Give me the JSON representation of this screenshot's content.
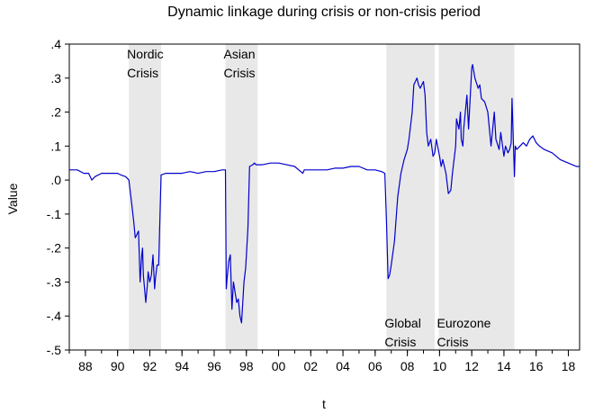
{
  "chart_data": {
    "type": "line",
    "title": "Dynamic linkage during crisis or non-crisis period",
    "xlabel": "t",
    "ylabel": "Value",
    "xlim": [
      1987.0,
      2018.7
    ],
    "ylim": [
      -0.5,
      0.4
    ],
    "yticks": [
      ".4",
      ".3",
      ".2",
      ".1",
      ".0",
      "-.1",
      "-.2",
      "-.3",
      "-.4",
      "-.5"
    ],
    "ytick_values": [
      0.4,
      0.3,
      0.2,
      0.1,
      0.0,
      -0.1,
      -0.2,
      -0.3,
      -0.4,
      -0.5
    ],
    "xticks": [
      "88",
      "90",
      "92",
      "94",
      "96",
      "98",
      "00",
      "02",
      "04",
      "06",
      "08",
      "10",
      "12",
      "14",
      "16",
      "18"
    ],
    "xtick_values": [
      1988,
      1990,
      1992,
      1994,
      1996,
      1998,
      2000,
      2002,
      2004,
      2006,
      2008,
      2010,
      2012,
      2014,
      2016,
      2018
    ],
    "grid": false,
    "line_color": "#0000cc",
    "shade_color": "#e8e8e8",
    "crisis_periods": [
      {
        "name": "Nordic Crisis",
        "line1": "Nordic",
        "line2": "Crisis",
        "start": 1990.7,
        "end": 1992.7,
        "label_position": "top"
      },
      {
        "name": "Asian Crisis",
        "line1": "Asian",
        "line2": "Crisis",
        "start": 1996.7,
        "end": 1998.7,
        "label_position": "top"
      },
      {
        "name": "Global Crisis",
        "line1": "Global",
        "line2": "Crisis",
        "start": 2006.7,
        "end": 2009.7,
        "label_position": "bottom"
      },
      {
        "name": "Eurozone Crisis",
        "line1": "Eurozone",
        "line2": "Crisis",
        "start": 2009.95,
        "end": 2014.65,
        "label_position": "bottom"
      }
    ],
    "series": [
      {
        "name": "Dynamic linkage",
        "x": [
          1987.0,
          1987.5,
          1987.9,
          1988.2,
          1988.4,
          1988.6,
          1989.0,
          1989.5,
          1990.0,
          1990.2,
          1990.5,
          1990.7,
          1990.9,
          1991.0,
          1991.1,
          1991.2,
          1991.3,
          1991.4,
          1991.5,
          1991.55,
          1991.6,
          1991.75,
          1991.85,
          1991.9,
          1992.0,
          1992.1,
          1992.2,
          1992.3,
          1992.35,
          1992.45,
          1992.55,
          1992.7,
          1993.0,
          1993.5,
          1994.0,
          1994.5,
          1995.0,
          1995.5,
          1996.0,
          1996.5,
          1996.7,
          1996.75,
          1996.8,
          1996.9,
          1997.0,
          1997.1,
          1997.2,
          1997.3,
          1997.4,
          1997.5,
          1997.6,
          1997.7,
          1997.75,
          1997.85,
          1997.95,
          1998.0,
          1998.1,
          1998.2,
          1998.4,
          1998.5,
          1998.6,
          1998.7,
          1999.0,
          1999.5,
          2000.0,
          2000.5,
          2001.0,
          2001.5,
          2001.6,
          2002.0,
          2002.5,
          2003.0,
          2003.5,
          2004.0,
          2004.5,
          2005.0,
          2005.5,
          2006.0,
          2006.4,
          2006.6,
          2006.7,
          2006.8,
          2006.9,
          2007.0,
          2007.2,
          2007.4,
          2007.6,
          2007.8,
          2008.0,
          2008.1,
          2008.3,
          2008.4,
          2008.6,
          2008.7,
          2008.8,
          2008.9,
          2009.0,
          2009.1,
          2009.2,
          2009.3,
          2009.45,
          2009.6,
          2009.7,
          2009.8,
          2010.0,
          2010.1,
          2010.2,
          2010.4,
          2010.55,
          2010.7,
          2010.8,
          2011.0,
          2011.05,
          2011.2,
          2011.3,
          2011.35,
          2011.45,
          2011.5,
          2011.6,
          2011.7,
          2011.8,
          2012.0,
          2012.05,
          2012.2,
          2012.4,
          2012.5,
          2012.6,
          2012.8,
          2013.0,
          2013.1,
          2013.2,
          2013.4,
          2013.5,
          2013.7,
          2013.8,
          2014.0,
          2014.1,
          2014.25,
          2014.35,
          2014.45,
          2014.5,
          2014.65,
          2014.7,
          2014.8,
          2015.0,
          2015.2,
          2015.4,
          2015.6,
          2015.8,
          2016.0,
          2016.2,
          2016.5,
          2017.0,
          2017.5,
          2018.0,
          2018.5,
          2018.7
        ],
        "values": [
          0.03,
          0.03,
          0.02,
          0.02,
          0.0,
          0.01,
          0.02,
          0.02,
          0.02,
          0.015,
          0.01,
          0.0,
          -0.08,
          -0.12,
          -0.17,
          -0.16,
          -0.15,
          -0.3,
          -0.22,
          -0.2,
          -0.28,
          -0.36,
          -0.31,
          -0.27,
          -0.3,
          -0.28,
          -0.22,
          -0.32,
          -0.29,
          -0.25,
          -0.25,
          0.015,
          0.02,
          0.02,
          0.02,
          0.025,
          0.02,
          0.025,
          0.025,
          0.03,
          0.03,
          -0.32,
          -0.29,
          -0.24,
          -0.22,
          -0.38,
          -0.3,
          -0.33,
          -0.36,
          -0.35,
          -0.4,
          -0.42,
          -0.38,
          -0.3,
          -0.26,
          -0.22,
          -0.14,
          0.04,
          0.045,
          0.05,
          0.045,
          0.045,
          0.045,
          0.05,
          0.05,
          0.045,
          0.04,
          0.02,
          0.03,
          0.03,
          0.03,
          0.03,
          0.035,
          0.035,
          0.04,
          0.04,
          0.03,
          0.03,
          0.025,
          0.02,
          -0.12,
          -0.29,
          -0.28,
          -0.25,
          -0.18,
          -0.05,
          0.02,
          0.06,
          0.09,
          0.12,
          0.2,
          0.28,
          0.3,
          0.28,
          0.27,
          0.28,
          0.29,
          0.25,
          0.14,
          0.1,
          0.12,
          0.07,
          0.08,
          0.12,
          0.07,
          0.04,
          0.06,
          0.02,
          -0.04,
          -0.03,
          0.02,
          0.1,
          0.18,
          0.15,
          0.2,
          0.12,
          0.1,
          0.15,
          0.2,
          0.25,
          0.15,
          0.33,
          0.34,
          0.3,
          0.27,
          0.28,
          0.24,
          0.23,
          0.2,
          0.15,
          0.1,
          0.2,
          0.12,
          0.09,
          0.14,
          0.07,
          0.1,
          0.08,
          0.09,
          0.11,
          0.24,
          0.01,
          0.1,
          0.09,
          0.1,
          0.11,
          0.1,
          0.12,
          0.13,
          0.11,
          0.1,
          0.09,
          0.08,
          0.06,
          0.05,
          0.04,
          0.04
        ]
      }
    ]
  }
}
